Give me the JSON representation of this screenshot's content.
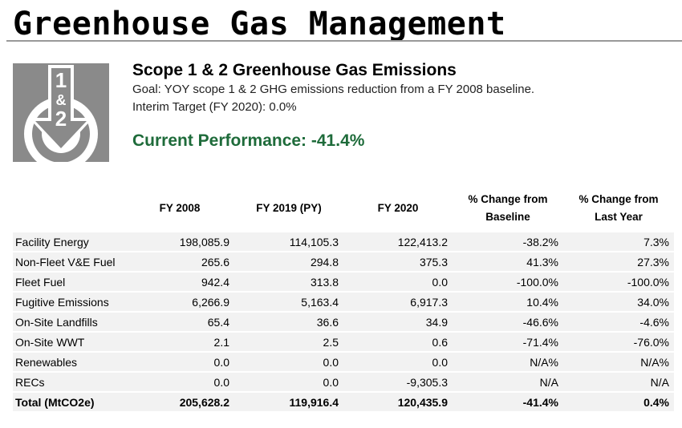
{
  "page": {
    "title": "Greenhouse Gas Management"
  },
  "logo": {
    "icon": "scope-1-2-target-arrow-icon",
    "text_top": "1",
    "text_mid": "&",
    "text_bottom": "2",
    "color": "#8a8a8a"
  },
  "header": {
    "scope_title": "Scope 1 & 2 Greenhouse Gas Emissions",
    "goal": "Goal: YOY scope 1 & 2 GHG emissions reduction from a FY 2008 baseline.",
    "interim_target": "Interim Target (FY 2020): 0.0%",
    "current_performance": "Current Performance: -41.4%",
    "performance_color": "#1e6b3a"
  },
  "table": {
    "headers": [
      "",
      "FY 2008",
      "FY 2019 (PY)",
      "FY 2020",
      "% Change from Baseline",
      "% Change from Last Year"
    ],
    "header_lines": {
      "h4_line1": "% Change from",
      "h4_line2": "Baseline",
      "h5_line1": "% Change from",
      "h5_line2": "Last Year"
    },
    "rows": [
      [
        "Facility Energy",
        "198,085.9",
        "114,105.3",
        "122,413.2",
        "-38.2%",
        "7.3%"
      ],
      [
        "Non-Fleet V&E Fuel",
        "265.6",
        "294.8",
        "375.3",
        "41.3%",
        "27.3%"
      ],
      [
        "Fleet Fuel",
        "942.4",
        "313.8",
        "0.0",
        "-100.0%",
        "-100.0%"
      ],
      [
        "Fugitive Emissions",
        "6,266.9",
        "5,163.4",
        "6,917.3",
        "10.4%",
        "34.0%"
      ],
      [
        "On-Site Landfills",
        "65.4",
        "36.6",
        "34.9",
        "-46.6%",
        "-4.6%"
      ],
      [
        "On-Site WWT",
        "2.1",
        "2.5",
        "0.6",
        "-71.4%",
        "-76.0%"
      ],
      [
        "Renewables",
        "0.0",
        "0.0",
        "0.0",
        "N/A%",
        "N/A%"
      ],
      [
        "RECs",
        "0.0",
        "0.0",
        "-9,305.3",
        "N/A",
        "N/A"
      ],
      [
        "Total (MtCO2e)",
        "205,628.2",
        "119,916.4",
        "120,435.9",
        "-41.4%",
        "0.4%"
      ]
    ]
  }
}
